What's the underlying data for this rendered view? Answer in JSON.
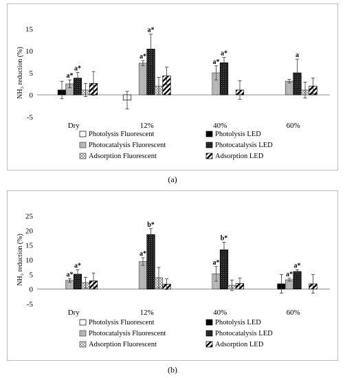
{
  "figures": [
    {
      "id": "a",
      "caption": "(a)",
      "ylabel": "NH₃ reduction (%)",
      "legend": [
        "Photolysis Fluorescent",
        "Photolysis LED",
        "Photocatalysis Fluorescent",
        "Photocatalysis LED",
        "Adsorption Fluorescent",
        "Adsorption LED"
      ]
    },
    {
      "id": "b",
      "caption": "(b)",
      "ylabel": "NH₃ reduction (%)",
      "legend": [
        "Photolysis Fluorescent",
        "Photolysis LED",
        "Photocatalysis Fluorescent",
        "Photocatalysis LED",
        "Adsorption Fluorescent",
        "Adsorption LED"
      ]
    }
  ],
  "colors": {
    "photolysis_fluorescent": "#ffffff",
    "photolysis_led": "#000000",
    "photocatalysis_fluorescent": "#cccccc",
    "photocatalysis_led": "#2a2a2a",
    "adsorption_fluorescent": "#d9d9d9",
    "adsorption_led": "#ffffff"
  },
  "chart_data": [
    {
      "type": "bar",
      "panel": "(a)",
      "ylabel": "NH₃ reduction (%)",
      "ylim": [
        -5,
        15
      ],
      "yticks": [
        -5,
        0,
        5,
        10,
        15
      ],
      "categories": [
        "Dry",
        "12%",
        "40%",
        "60%"
      ],
      "series": [
        {
          "name": "Photolysis Fluorescent",
          "values": [
            0,
            -1.2,
            0,
            0
          ],
          "errors": [
            0,
            2.0,
            0,
            0
          ]
        },
        {
          "name": "Photolysis LED",
          "values": [
            1.1,
            0,
            0,
            0
          ],
          "errors": [
            2.0,
            0,
            0,
            0
          ]
        },
        {
          "name": "Photocatalysis Fluorescent",
          "values": [
            2.5,
            7.2,
            5.0,
            3.1
          ],
          "errors": [
            0.9,
            0.6,
            1.6,
            0.4
          ]
        },
        {
          "name": "Photocatalysis LED",
          "values": [
            3.8,
            10.4,
            7.3,
            5.0
          ],
          "errors": [
            1.3,
            3.4,
            1.2,
            3.1
          ]
        },
        {
          "name": "Adsorption Fluorescent",
          "values": [
            1.1,
            2.0,
            0,
            1.1
          ],
          "errors": [
            1.5,
            2.0,
            0,
            1.8
          ]
        },
        {
          "name": "Adsorption LED",
          "values": [
            2.6,
            4.3,
            1.1,
            2.0
          ],
          "errors": [
            2.7,
            2.0,
            2.1,
            1.8
          ]
        }
      ],
      "annotations": [
        {
          "category": "Dry",
          "series": "Photocatalysis Fluorescent",
          "text": "a*"
        },
        {
          "category": "Dry",
          "series": "Photocatalysis LED",
          "text": "a*"
        },
        {
          "category": "12%",
          "series": "Photocatalysis Fluorescent",
          "text": "a*"
        },
        {
          "category": "12%",
          "series": "Photocatalysis LED",
          "text": "a*"
        },
        {
          "category": "40%",
          "series": "Photocatalysis Fluorescent",
          "text": "a*"
        },
        {
          "category": "40%",
          "series": "Photocatalysis LED",
          "text": "a*"
        },
        {
          "category": "60%",
          "series": "Photocatalysis LED",
          "text": "a"
        }
      ]
    },
    {
      "type": "bar",
      "panel": "(b)",
      "ylabel": "NH₃ reduction (%)",
      "ylim": [
        -5,
        25
      ],
      "yticks": [
        -5,
        0,
        5,
        10,
        15,
        20,
        25
      ],
      "categories": [
        "Dry",
        "12%",
        "40%",
        "60%"
      ],
      "series": [
        {
          "name": "Photolysis Fluorescent",
          "values": [
            0,
            0,
            0,
            0
          ],
          "errors": [
            0,
            0,
            0,
            0
          ]
        },
        {
          "name": "Photolysis LED",
          "values": [
            0,
            0,
            0,
            1.8
          ],
          "errors": [
            0,
            0,
            0,
            3.2
          ]
        },
        {
          "name": "Photocatalysis Fluorescent",
          "values": [
            3.0,
            9.4,
            5.2,
            3.2
          ],
          "errors": [
            0.6,
            1.3,
            2.5,
            0.5
          ]
        },
        {
          "name": "Photocatalysis LED",
          "values": [
            5.1,
            18.6,
            13.4,
            6.0
          ],
          "errors": [
            1.5,
            2.0,
            2.6,
            0.6
          ]
        },
        {
          "name": "Adsorption Fluorescent",
          "values": [
            2.2,
            3.9,
            1.3,
            0
          ],
          "errors": [
            1.8,
            3.5,
            1.8,
            0
          ]
        },
        {
          "name": "Adsorption LED",
          "values": [
            2.8,
            1.7,
            1.9,
            1.8
          ],
          "errors": [
            2.7,
            1.8,
            1.9,
            3.2
          ]
        }
      ],
      "annotations": [
        {
          "category": "Dry",
          "series": "Photocatalysis Fluorescent",
          "text": "a*"
        },
        {
          "category": "Dry",
          "series": "Photocatalysis LED",
          "text": "a*"
        },
        {
          "category": "12%",
          "series": "Photocatalysis Fluorescent",
          "text": "a*"
        },
        {
          "category": "12%",
          "series": "Photocatalysis LED",
          "text": "b*"
        },
        {
          "category": "40%",
          "series": "Photocatalysis Fluorescent",
          "text": "a*"
        },
        {
          "category": "40%",
          "series": "Photocatalysis LED",
          "text": "b*"
        },
        {
          "category": "60%",
          "series": "Photocatalysis Fluorescent",
          "text": "a*"
        },
        {
          "category": "60%",
          "series": "Photocatalysis LED",
          "text": "a*"
        }
      ]
    }
  ]
}
